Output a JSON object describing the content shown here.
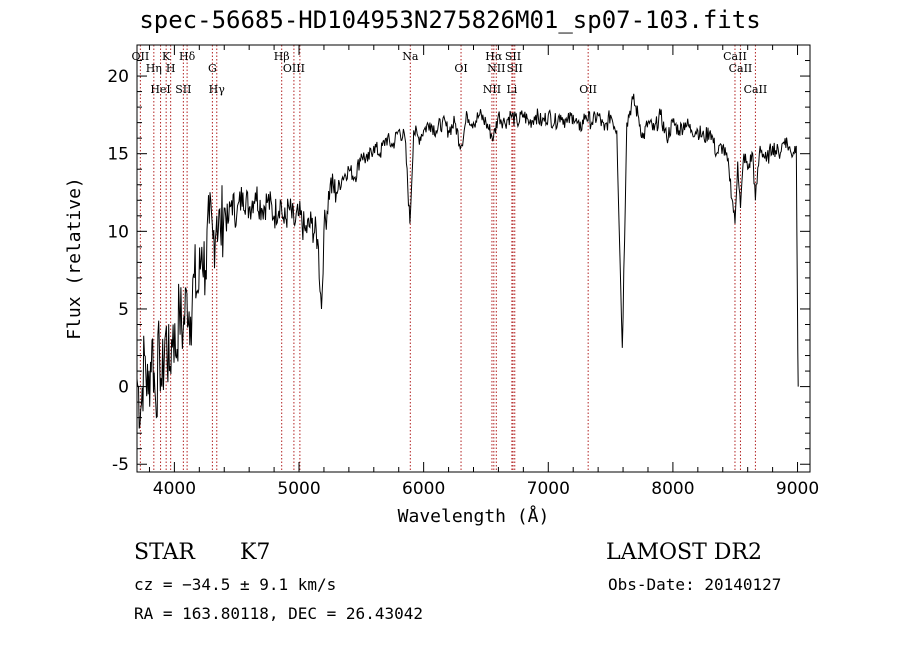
{
  "title": "spec-56685-HD104953N275826M01_sp07-103.fits",
  "chart_data": {
    "type": "line",
    "xlabel": "Wavelength (Å)",
    "ylabel": "Flux (relative)",
    "xlim": [
      3700,
      9100
    ],
    "ylim": [
      -5.5,
      22
    ],
    "x_ticks": [
      4000,
      5000,
      6000,
      7000,
      8000,
      9000
    ],
    "y_ticks": [
      -5,
      0,
      5,
      10,
      15,
      20
    ],
    "grid": false,
    "series": [
      {
        "points": [
          [
            3700,
            0.5
          ],
          [
            3730,
            -1.5
          ],
          [
            3760,
            2.0
          ],
          [
            3790,
            -0.5
          ],
          [
            3820,
            3.0
          ],
          [
            3850,
            -1.0
          ],
          [
            3880,
            2.5
          ],
          [
            3900,
            0.0
          ],
          [
            3930,
            3.5
          ],
          [
            3960,
            1.0
          ],
          [
            3990,
            4.0
          ],
          [
            4010,
            2.0
          ],
          [
            4040,
            5.0
          ],
          [
            4070,
            3.5
          ],
          [
            4100,
            6.0
          ],
          [
            4130,
            4.5
          ],
          [
            4160,
            7.0
          ],
          [
            4190,
            6.0
          ],
          [
            4220,
            9.0
          ],
          [
            4250,
            7.5
          ],
          [
            4280,
            10.5
          ],
          [
            4310,
            9.5
          ],
          [
            4340,
            11.0
          ],
          [
            4370,
            10.0
          ],
          [
            4400,
            11.5
          ],
          [
            4430,
            10.5
          ],
          [
            4460,
            12.0
          ],
          [
            4500,
            11.0
          ],
          [
            4550,
            12.5
          ],
          [
            4600,
            11.5
          ],
          [
            4650,
            12.5
          ],
          [
            4700,
            11.5
          ],
          [
            4750,
            12.0
          ],
          [
            4800,
            11.0
          ],
          [
            4850,
            12.0
          ],
          [
            4880,
            10.5
          ],
          [
            4920,
            11.5
          ],
          [
            4960,
            10.5
          ],
          [
            5000,
            11.0
          ],
          [
            5050,
            10.0
          ],
          [
            5100,
            10.5
          ],
          [
            5150,
            9.5
          ],
          [
            5180,
            5.0
          ],
          [
            5200,
            10.0
          ],
          [
            5250,
            13.0
          ],
          [
            5300,
            12.5
          ],
          [
            5350,
            13.5
          ],
          [
            5400,
            14.0
          ],
          [
            5450,
            13.5
          ],
          [
            5500,
            15.0
          ],
          [
            5550,
            14.5
          ],
          [
            5600,
            15.5
          ],
          [
            5650,
            15.0
          ],
          [
            5700,
            16.0
          ],
          [
            5750,
            15.5
          ],
          [
            5800,
            16.5
          ],
          [
            5850,
            16.0
          ],
          [
            5890,
            10.5
          ],
          [
            5920,
            16.5
          ],
          [
            5960,
            16.0
          ],
          [
            6000,
            16.5
          ],
          [
            6050,
            17.0
          ],
          [
            6100,
            16.5
          ],
          [
            6150,
            17.0
          ],
          [
            6200,
            16.5
          ],
          [
            6250,
            17.0
          ],
          [
            6300,
            15.5
          ],
          [
            6350,
            17.5
          ],
          [
            6400,
            17.0
          ],
          [
            6450,
            17.5
          ],
          [
            6500,
            17.0
          ],
          [
            6560,
            16.0
          ],
          [
            6600,
            17.5
          ],
          [
            6650,
            17.0
          ],
          [
            6700,
            17.5
          ],
          [
            6750,
            17.0
          ],
          [
            6800,
            17.5
          ],
          [
            6850,
            17.0
          ],
          [
            6900,
            17.5
          ],
          [
            6950,
            17.0
          ],
          [
            7000,
            17.5
          ],
          [
            7050,
            17.0
          ],
          [
            7100,
            17.5
          ],
          [
            7150,
            17.0
          ],
          [
            7200,
            17.5
          ],
          [
            7250,
            16.5
          ],
          [
            7300,
            17.5
          ],
          [
            7350,
            17.0
          ],
          [
            7400,
            17.5
          ],
          [
            7450,
            16.5
          ],
          [
            7500,
            17.5
          ],
          [
            7550,
            16.5
          ],
          [
            7594,
            2.5
          ],
          [
            7630,
            17.0
          ],
          [
            7680,
            18.5
          ],
          [
            7720,
            17.5
          ],
          [
            7760,
            16.0
          ],
          [
            7800,
            17.0
          ],
          [
            7850,
            16.5
          ],
          [
            7900,
            17.5
          ],
          [
            7950,
            16.0
          ],
          [
            8000,
            17.0
          ],
          [
            8050,
            16.5
          ],
          [
            8100,
            17.0
          ],
          [
            8150,
            16.5
          ],
          [
            8200,
            16.5
          ],
          [
            8250,
            16.0
          ],
          [
            8300,
            16.5
          ],
          [
            8350,
            15.0
          ],
          [
            8400,
            15.5
          ],
          [
            8450,
            14.0
          ],
          [
            8498,
            10.5
          ],
          [
            8520,
            14.5
          ],
          [
            8542,
            11.5
          ],
          [
            8570,
            15.0
          ],
          [
            8600,
            14.0
          ],
          [
            8640,
            15.0
          ],
          [
            8662,
            12.0
          ],
          [
            8700,
            15.5
          ],
          [
            8750,
            14.5
          ],
          [
            8800,
            15.5
          ],
          [
            8850,
            15.0
          ],
          [
            8900,
            16.0
          ],
          [
            8950,
            15.0
          ],
          [
            8990,
            15.5
          ],
          [
            9000,
            5.0
          ],
          [
            9005,
            0.0
          ]
        ]
      }
    ],
    "lines": [
      {
        "x": 3727,
        "label": "OII"
      },
      {
        "x": 3835,
        "label": "Hη"
      },
      {
        "x": 3889,
        "label": "HeI"
      },
      {
        "x": 3934,
        "label": "K"
      },
      {
        "x": 3970,
        "label": "H"
      },
      {
        "x": 4072,
        "label": "SII"
      },
      {
        "x": 4102,
        "label": "Hδ"
      },
      {
        "x": 4305,
        "label": "G"
      },
      {
        "x": 4340,
        "label": "Hγ"
      },
      {
        "x": 4861,
        "label": "Hβ"
      },
      {
        "x": 4959,
        "label": "OIII"
      },
      {
        "x": 5007,
        "label": ""
      },
      {
        "x": 5893,
        "label": "Na"
      },
      {
        "x": 6300,
        "label": "OI"
      },
      {
        "x": 6548,
        "label": "NII"
      },
      {
        "x": 6563,
        "label": "Hα"
      },
      {
        "x": 6583,
        "label": "NII"
      },
      {
        "x": 6708,
        "label": "Li"
      },
      {
        "x": 6717,
        "label": "SII"
      },
      {
        "x": 6731,
        "label": "SII"
      },
      {
        "x": 7320,
        "label": "OII"
      },
      {
        "x": 8498,
        "label": "CaII"
      },
      {
        "x": 8542,
        "label": "CaII"
      },
      {
        "x": 8662,
        "label": "CaII"
      }
    ]
  },
  "info": {
    "class": "STAR",
    "subclass": "K7",
    "survey": "LAMOST DR2",
    "cz": "cz = −34.5 ± 9.1 km/s",
    "obsdate": "Obs-Date: 20140127",
    "coords": "RA = 163.80118, DEC =  26.43042"
  }
}
